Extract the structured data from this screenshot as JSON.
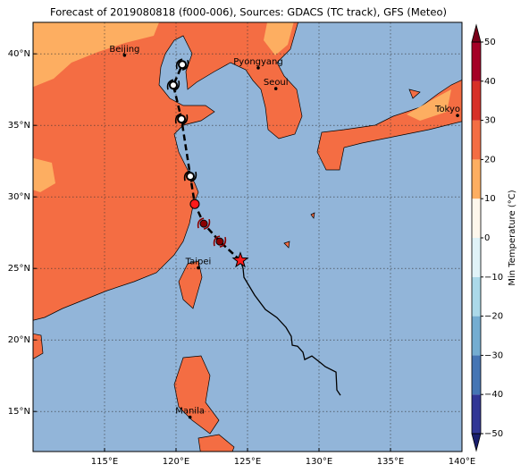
{
  "chart_data": {
    "type": "map",
    "title": "Forecast of 2019080818 (f000-006), Sources: GDACS (TC track), GFS (Meteo)",
    "xlim": [
      110,
      140
    ],
    "ylim": [
      12.2,
      42.2
    ],
    "xticks": [
      {
        "value": 115,
        "label": "115°E"
      },
      {
        "value": 120,
        "label": "120°E"
      },
      {
        "value": 125,
        "label": "125°E"
      },
      {
        "value": 130,
        "label": "130°E"
      },
      {
        "value": 135,
        "label": "135°E"
      },
      {
        "value": 140,
        "label": "140°E"
      }
    ],
    "yticks": [
      {
        "value": 15,
        "label": "15°N"
      },
      {
        "value": 20,
        "label": "20°N"
      },
      {
        "value": 25,
        "label": "25°N"
      },
      {
        "value": 30,
        "label": "30°N"
      },
      {
        "value": 35,
        "label": "35°N"
      },
      {
        "value": 40,
        "label": "40°N"
      }
    ],
    "grid": true,
    "cities": [
      {
        "name": "Beijing",
        "lon": 116.4,
        "lat": 39.9
      },
      {
        "name": "Pyongyang",
        "lon": 125.75,
        "lat": 39.02
      },
      {
        "name": "Seoul",
        "lon": 126.98,
        "lat": 37.57
      },
      {
        "name": "Tokyo",
        "lon": 139.69,
        "lat": 35.69
      },
      {
        "name": "Taipei",
        "lon": 121.56,
        "lat": 25.04
      },
      {
        "name": "Manila",
        "lon": 120.98,
        "lat": 14.6
      }
    ],
    "past_track": {
      "color": "#000000",
      "lon": [
        124.5,
        124.69,
        124.75,
        125.5,
        126.25,
        127.06,
        127.69,
        128.06,
        128.13,
        128.5,
        128.88,
        129.0,
        129.5,
        130.06,
        130.44,
        131.19,
        131.25,
        131.5
      ],
      "lat": [
        25.56,
        25.0,
        24.38,
        23.13,
        22.13,
        21.56,
        20.88,
        20.25,
        19.63,
        19.56,
        19.13,
        18.63,
        18.88,
        18.44,
        18.13,
        17.75,
        16.5,
        16.13
      ]
    },
    "forecast_track": {
      "color": "#000000",
      "lon": [
        124.5,
        123.06,
        121.94,
        121.31,
        121.0,
        120.38,
        119.81,
        120.44
      ],
      "lat": [
        25.56,
        26.88,
        28.13,
        29.5,
        31.44,
        35.44,
        37.81,
        39.25
      ],
      "markers": [
        "star",
        "storm",
        "storm",
        "circle",
        "storm",
        "storm",
        "storm",
        "storm"
      ],
      "colors": [
        "#ff1a1a",
        "#8b0000",
        "#8b0000",
        "#ff1a1a",
        "#ffffff",
        "#ffffff",
        "#ffffff",
        "#ffffff"
      ]
    },
    "colorbar": {
      "label": "Min Temperature (°C)",
      "ticks": [
        {
          "value": -50,
          "label": "−50"
        },
        {
          "value": -40,
          "label": "−40"
        },
        {
          "value": -30,
          "label": "−30"
        },
        {
          "value": -20,
          "label": "−20"
        },
        {
          "value": -10,
          "label": "−10"
        },
        0,
        10,
        20,
        30,
        40,
        50
      ],
      "colors": [
        "#313695",
        "#4575b4",
        "#74add1",
        "#abd9e9",
        "#e0f3f8",
        "#fef7ec",
        "#fdae61",
        "#f46d43",
        "#d73027",
        "#a50026"
      ],
      "under_color": "#1a1f6e",
      "over_color": "#7a0019"
    }
  }
}
